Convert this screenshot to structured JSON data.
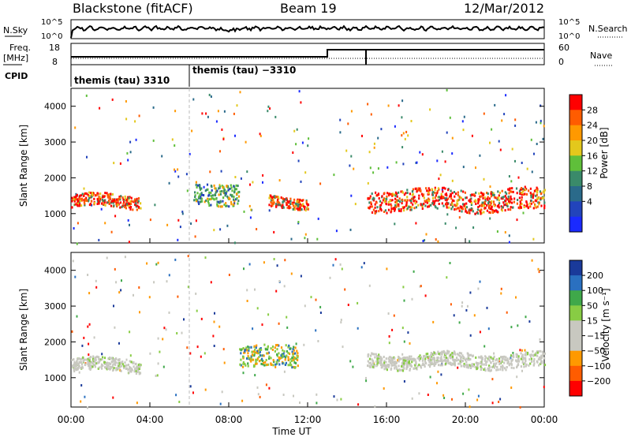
{
  "header": {
    "station": "Blackstone (fitACF)",
    "beam": "Beam 19",
    "date": "12/Mar/2012"
  },
  "strips": {
    "nsky_label": "N.Sky",
    "nsky_ticks": [
      "10^5",
      "10^0"
    ],
    "nsearch_label": "N.Search",
    "nsearch_ticks": [
      "10^5",
      "10^0"
    ],
    "freq_label_1": "Freq.",
    "freq_label_2": "[MHz]",
    "freq_ticks": [
      "18",
      "8"
    ],
    "nave_label": "Nave",
    "nave_ticks": [
      "60",
      "0"
    ],
    "cpid_label": "CPID",
    "cpid_1": "themis (tau) 3310",
    "cpid_2": "themis (tau) −3310"
  },
  "chart_data": [
    {
      "type": "heatmap",
      "title": "Power",
      "ylabel": "Slant Range [km]",
      "xlabel": "Time UT",
      "y_ticks": [
        "4000",
        "3000",
        "2000",
        "1000"
      ],
      "ylim": [
        180,
        4500
      ],
      "x_ticks": [
        "00:00",
        "04:00",
        "08:00",
        "12:00",
        "16:00",
        "20:00",
        "00:00"
      ],
      "colorbar_label": "Power [dB]",
      "colorbar_ticks": [
        "28",
        "24",
        "20",
        "16",
        "12",
        "8",
        "4"
      ],
      "colors": [
        "#ff0000",
        "#ff5c00",
        "#ff9900",
        "#e3c81c",
        "#5fbf3a",
        "#3a8a6a",
        "#2a6a8a",
        "#2244bb",
        "#1a2aff"
      ],
      "bands": [
        {
          "t_start": 0.0,
          "t_end": 3.5,
          "range_start": 1200,
          "range_end": 1550,
          "power": "high"
        },
        {
          "t_start": 6.2,
          "t_end": 8.5,
          "range_start": 1300,
          "range_end": 1900,
          "power": "mid"
        },
        {
          "t_start": 10.0,
          "t_end": 12.0,
          "range_start": 1200,
          "range_end": 1500,
          "power": "high"
        },
        {
          "t_start": 15.0,
          "t_end": 24.0,
          "range_start": 1100,
          "range_end": 1700,
          "power": "high"
        }
      ]
    },
    {
      "type": "heatmap",
      "title": "Velocity",
      "ylabel": "Slant Range [km]",
      "xlabel": "Time UT",
      "y_ticks": [
        "4000",
        "3000",
        "2000",
        "1000"
      ],
      "ylim": [
        180,
        4500
      ],
      "x_ticks": [
        "00:00",
        "04:00",
        "08:00",
        "12:00",
        "16:00",
        "20:00",
        "00:00"
      ],
      "colorbar_label": "Velocity [m s⁻¹]",
      "colorbar_ticks": [
        "200",
        "100",
        "50",
        "15",
        "−15",
        "−50",
        "−100",
        "−200"
      ],
      "colors": [
        "#1a3a9a",
        "#2a70c0",
        "#3fa84a",
        "#88cc44",
        "#c8c8c0",
        "#c8c8c0",
        "#ff9900",
        "#ff5c00",
        "#ff0000"
      ],
      "bands": [
        {
          "t_start": 0.0,
          "t_end": 3.5,
          "range_start": 1200,
          "range_end": 1550,
          "velocity": "ground"
        },
        {
          "t_start": 8.5,
          "t_end": 11.5,
          "range_start": 1300,
          "range_end": 1900,
          "velocity": "mixed"
        },
        {
          "t_start": 15.0,
          "t_end": 24.0,
          "range_start": 1300,
          "range_end": 1700,
          "velocity": "ground"
        }
      ]
    }
  ]
}
